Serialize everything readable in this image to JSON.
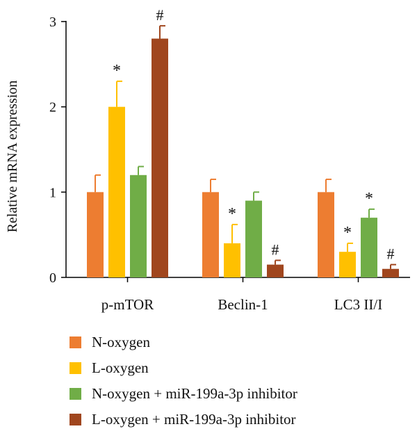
{
  "chart_data": {
    "type": "bar",
    "title": "",
    "xlabel": "",
    "ylabel": "Relative mRNA expression",
    "ylim": [
      0,
      3
    ],
    "yticks": [
      "0",
      "1",
      "2",
      "3"
    ],
    "categories": [
      "p-mTOR",
      "Beclin-1",
      "LC3 II/I"
    ],
    "series": [
      {
        "name": "N-oxygen",
        "color": "#ED7D31",
        "values": [
          1.0,
          1.0,
          1.0
        ],
        "errors": [
          0.2,
          0.15,
          0.15
        ],
        "marks": [
          "",
          "",
          ""
        ]
      },
      {
        "name": "L-oxygen",
        "color": "#FFC000",
        "values": [
          2.0,
          0.4,
          0.3
        ],
        "errors": [
          0.3,
          0.22,
          0.1
        ],
        "marks": [
          "*",
          "*",
          "*"
        ]
      },
      {
        "name": "N-oxygen + miR-199a-3p inhibitor",
        "color": "#70AD47",
        "values": [
          1.2,
          0.9,
          0.7
        ],
        "errors": [
          0.1,
          0.1,
          0.1
        ],
        "marks": [
          "",
          "",
          "*"
        ]
      },
      {
        "name": "L-oxygen + miR-199a-3p inhibitor",
        "color": "#A0461E",
        "values": [
          2.8,
          0.15,
          0.1
        ],
        "errors": [
          0.15,
          0.05,
          0.05
        ],
        "marks": [
          "#",
          "#",
          "#"
        ]
      }
    ],
    "grid": false,
    "legend_position": "bottom"
  }
}
